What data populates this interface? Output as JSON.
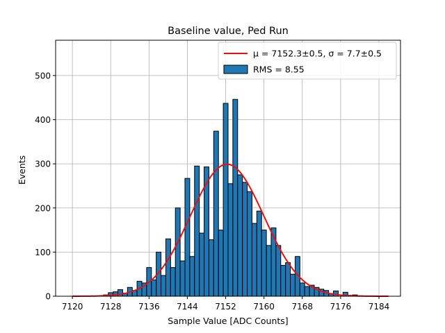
{
  "chart_data": {
    "type": "bar",
    "title": "Baseline value, Ped Run",
    "xlabel": "Sample Value [ADC Counts]",
    "ylabel": "Events",
    "xlim": [
      7116.5,
      7188.5
    ],
    "ylim": [
      0,
      580
    ],
    "xticks": [
      7120,
      7128,
      7136,
      7144,
      7152,
      7160,
      7168,
      7176,
      7184
    ],
    "yticks": [
      0,
      100,
      200,
      300,
      400,
      500
    ],
    "grid": true,
    "legend_position": "top-right",
    "bin_width": 1,
    "bins": [
      {
        "x": 7127,
        "v": 3
      },
      {
        "x": 7128,
        "v": 8
      },
      {
        "x": 7129,
        "v": 10
      },
      {
        "x": 7130,
        "v": 15
      },
      {
        "x": 7131,
        "v": 7
      },
      {
        "x": 7132,
        "v": 20
      },
      {
        "x": 7133,
        "v": 13
      },
      {
        "x": 7134,
        "v": 34
      },
      {
        "x": 7135,
        "v": 30
      },
      {
        "x": 7136,
        "v": 65
      },
      {
        "x": 7137,
        "v": 37
      },
      {
        "x": 7138,
        "v": 100
      },
      {
        "x": 7139,
        "v": 47
      },
      {
        "x": 7140,
        "v": 130
      },
      {
        "x": 7141,
        "v": 65
      },
      {
        "x": 7142,
        "v": 200
      },
      {
        "x": 7143,
        "v": 80
      },
      {
        "x": 7144,
        "v": 267
      },
      {
        "x": 7145,
        "v": 90
      },
      {
        "x": 7146,
        "v": 295
      },
      {
        "x": 7147,
        "v": 143
      },
      {
        "x": 7148,
        "v": 293
      },
      {
        "x": 7149,
        "v": 128
      },
      {
        "x": 7150,
        "v": 374
      },
      {
        "x": 7151,
        "v": 150
      },
      {
        "x": 7152,
        "v": 437
      },
      {
        "x": 7153,
        "v": 255
      },
      {
        "x": 7154,
        "v": 446
      },
      {
        "x": 7155,
        "v": 275
      },
      {
        "x": 7156,
        "v": 258
      },
      {
        "x": 7157,
        "v": 237
      },
      {
        "x": 7158,
        "v": 165
      },
      {
        "x": 7159,
        "v": 193
      },
      {
        "x": 7160,
        "v": 150
      },
      {
        "x": 7161,
        "v": 115
      },
      {
        "x": 7162,
        "v": 155
      },
      {
        "x": 7163,
        "v": 115
      },
      {
        "x": 7164,
        "v": 70
      },
      {
        "x": 7165,
        "v": 76
      },
      {
        "x": 7166,
        "v": 50
      },
      {
        "x": 7167,
        "v": 90
      },
      {
        "x": 7168,
        "v": 30
      },
      {
        "x": 7169,
        "v": 22
      },
      {
        "x": 7170,
        "v": 25
      },
      {
        "x": 7171,
        "v": 20
      },
      {
        "x": 7172,
        "v": 16
      },
      {
        "x": 7173,
        "v": 13
      },
      {
        "x": 7174,
        "v": 6
      },
      {
        "x": 7175,
        "v": 12
      },
      {
        "x": 7177,
        "v": 9
      },
      {
        "x": 7178,
        "v": 2
      },
      {
        "x": 7179,
        "v": 3
      },
      {
        "x": 7180,
        "v": 1
      }
    ],
    "fit": {
      "mu": 7152.3,
      "sigma": 7.7,
      "amplitude": 299,
      "x_range": [
        7120,
        7186
      ]
    },
    "legend": {
      "fit_label": "μ = 7152.3±0.5, σ = 7.7±0.5",
      "hist_label": "RMS = 8.55"
    },
    "colors": {
      "bars": "#1f77b4",
      "bar_edge": "#000000",
      "fit": "#e8100f",
      "grid": "#b0b0b0"
    }
  }
}
